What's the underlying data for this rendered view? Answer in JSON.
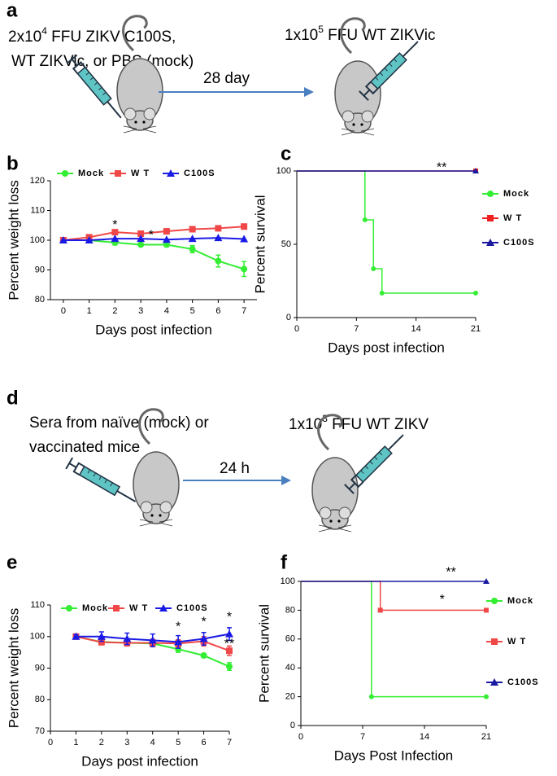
{
  "diagrams": [
    {
      "panel": "a",
      "left_line1": [
        "2x10",
        "4",
        " FFU ZIKV C100S,"
      ],
      "left_line2": "WT ZIKVic, or PBS (mock)",
      "arrow_label": "28 day",
      "right_line": [
        "1x10",
        "5",
        " FFU WT ZIKVic"
      ]
    },
    {
      "panel": "d",
      "left_line1": "Sera from naïve (mock) or",
      "left_line2": "vaccinated mice",
      "arrow_label": "24 h",
      "right_line": [
        "1x10",
        "3",
        " FFU WT ZIKV"
      ]
    }
  ],
  "chart_data": [
    {
      "type": "line",
      "panel": "b",
      "y_label": "Percent weight loss",
      "x_label": "Days post infection",
      "x": [
        0,
        1,
        2,
        3,
        4,
        5,
        6,
        7
      ],
      "xlim": [
        -0.5,
        7.5
      ],
      "xticks": [
        0,
        1,
        2,
        3,
        4,
        5,
        6,
        7
      ],
      "ylim": [
        80,
        120
      ],
      "yticks": [
        80,
        90,
        100,
        110,
        120
      ],
      "legend": "top",
      "series": [
        {
          "name": "Mock",
          "color": "#33ee33",
          "marker": "circle",
          "values": [
            100,
            100,
            99.2,
            98.5,
            98.5,
            97,
            93,
            90.3
          ],
          "errors": [
            0.3,
            0.4,
            0.8,
            0.5,
            0.7,
            1.2,
            2,
            2.5
          ]
        },
        {
          "name": "W T",
          "color": "#f04848",
          "marker": "square",
          "values": [
            100,
            101,
            102.7,
            102.2,
            103,
            103.7,
            104,
            104.6
          ]
        },
        {
          "name": "C100S",
          "color": "#1a1ae6",
          "marker": "triangle",
          "values": [
            100,
            100,
            100.5,
            100.5,
            100.2,
            100.5,
            100.8,
            100.4
          ]
        }
      ],
      "annotations": [
        {
          "text": "*",
          "x": 2,
          "y": 105
        },
        {
          "text": "*",
          "x": 3.4,
          "y": 101.5
        }
      ]
    },
    {
      "type": "step",
      "panel": "c",
      "y_label": "Percent survival",
      "x_label": "Days post infection",
      "xlim": [
        0,
        21
      ],
      "xticks": [
        0,
        7,
        14,
        21
      ],
      "ylim": [
        0,
        100
      ],
      "yticks": [
        0,
        50,
        100
      ],
      "legend": "right",
      "series": [
        {
          "name": "Mock",
          "color": "#33ee33",
          "marker": "circle",
          "x": [
            0,
            8,
            9,
            10,
            21
          ],
          "values": [
            100,
            66.7,
            33.3,
            16.7,
            16.7
          ]
        },
        {
          "name": "W T",
          "color": "#f02020",
          "marker": "square",
          "x": [
            0,
            21
          ],
          "values": [
            100,
            100
          ]
        },
        {
          "name": "C100S",
          "color": "#1a1aa0",
          "marker": "triangle",
          "x": [
            0,
            21
          ],
          "values": [
            100,
            100
          ]
        }
      ],
      "annotations": [
        {
          "text": "**",
          "x": 17,
          "y": 102
        }
      ]
    },
    {
      "type": "line",
      "panel": "e",
      "y_label": "Percent weight loss",
      "x_label": "Days post infection",
      "x": [
        1,
        2,
        3,
        4,
        5,
        6,
        7
      ],
      "xlim": [
        0,
        7
      ],
      "xticks": [
        0,
        1,
        2,
        3,
        4,
        5,
        6,
        7
      ],
      "ylim": [
        70,
        110
      ],
      "yticks": [
        70,
        80,
        90,
        100,
        110
      ],
      "legend": "top",
      "series": [
        {
          "name": "Mock",
          "color": "#33ee33",
          "marker": "circle",
          "values": [
            100,
            98.3,
            98,
            97.8,
            96,
            94,
            90.5
          ],
          "errors": [
            0.5,
            0.6,
            0.8,
            1,
            1,
            0.6,
            1.2
          ]
        },
        {
          "name": "W T",
          "color": "#f04848",
          "marker": "square",
          "values": [
            100,
            98.2,
            98,
            98,
            97.8,
            98.5,
            95.5
          ],
          "errors": [
            0.5,
            0.8,
            1,
            1.2,
            1.2,
            1.5,
            1.5
          ]
        },
        {
          "name": "C100S",
          "color": "#1a1ae6",
          "marker": "triangle",
          "values": [
            100,
            100,
            99.3,
            98.8,
            98.3,
            99.3,
            100.8
          ],
          "errors": [
            0.6,
            1.5,
            1.8,
            2,
            2,
            2,
            2
          ]
        }
      ],
      "annotations": [
        {
          "text": "*",
          "x": 5,
          "y": 103
        },
        {
          "text": "*",
          "x": 6,
          "y": 104.5
        },
        {
          "text": "*",
          "x": 7,
          "y": 106
        },
        {
          "text": "**",
          "x": 7,
          "y": 97.5
        }
      ]
    },
    {
      "type": "step",
      "panel": "f",
      "y_label": "Percent survival",
      "x_label": "Days Post Infection",
      "xlim": [
        0,
        21
      ],
      "xticks": [
        0,
        7,
        14,
        21
      ],
      "ylim": [
        0,
        100
      ],
      "yticks": [
        0,
        20,
        40,
        60,
        80,
        100
      ],
      "legend": "right",
      "series": [
        {
          "name": "Mock",
          "color": "#33ee33",
          "marker": "circle",
          "x": [
            0,
            8,
            21
          ],
          "values": [
            100,
            20,
            20
          ]
        },
        {
          "name": "W T",
          "color": "#f04848",
          "marker": "square",
          "x": [
            0,
            9,
            21
          ],
          "values": [
            100,
            80,
            80
          ]
        },
        {
          "name": "C100S",
          "color": "#1a1aa0",
          "marker": "triangle",
          "x": [
            0,
            21
          ],
          "values": [
            100,
            100
          ]
        }
      ],
      "annotations": [
        {
          "text": "**",
          "x": 17,
          "y": 106
        },
        {
          "text": "*",
          "x": 16,
          "y": 87
        }
      ]
    }
  ]
}
